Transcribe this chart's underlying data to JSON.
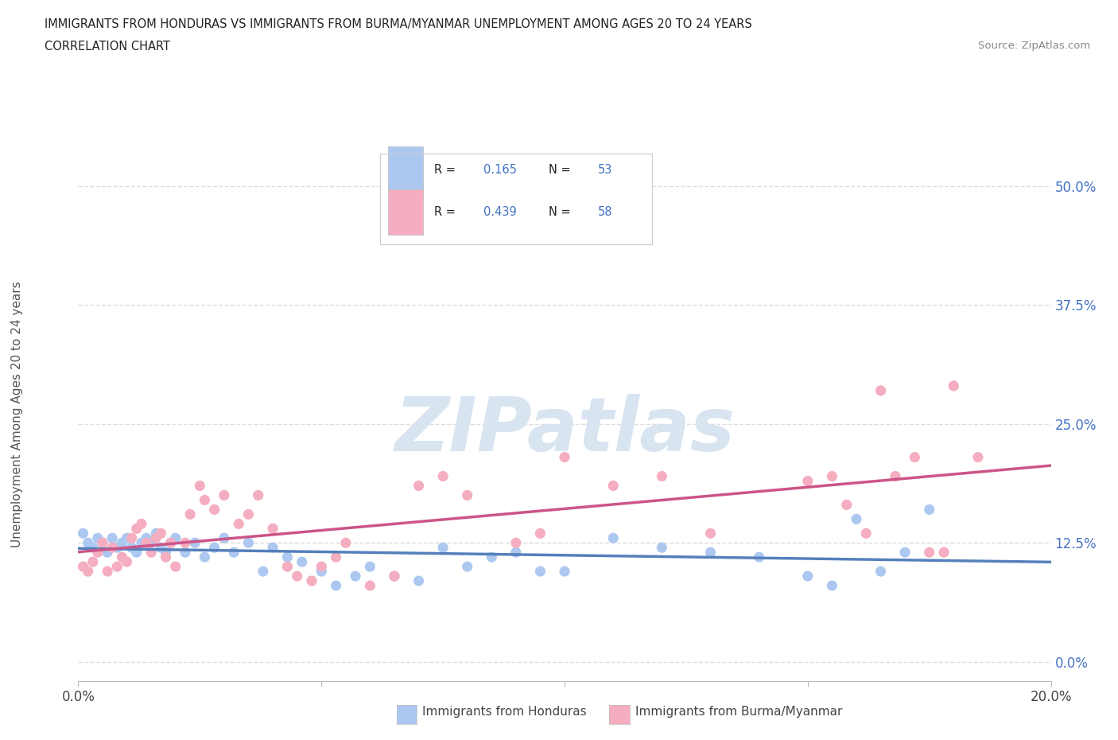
{
  "title_line1": "IMMIGRANTS FROM HONDURAS VS IMMIGRANTS FROM BURMA/MYANMAR UNEMPLOYMENT AMONG AGES 20 TO 24 YEARS",
  "title_line2": "CORRELATION CHART",
  "source_text": "Source: ZipAtlas.com",
  "ylabel": "Unemployment Among Ages 20 to 24 years",
  "xlim": [
    0.0,
    0.2
  ],
  "ylim": [
    -0.02,
    0.54
  ],
  "xticks": [
    0.0,
    0.05,
    0.1,
    0.15,
    0.2
  ],
  "xtick_labels": [
    "0.0%",
    "",
    "",
    "",
    "20.0%"
  ],
  "ytick_labels": [
    "0.0%",
    "12.5%",
    "25.0%",
    "37.5%",
    "50.0%"
  ],
  "yticks": [
    0.0,
    0.125,
    0.25,
    0.375,
    0.5
  ],
  "r_honduras": "0.165",
  "n_honduras": "53",
  "r_burma": "0.439",
  "n_burma": "58",
  "color_honduras": "#adc8f0",
  "color_burma": "#f5adc0",
  "line_color_honduras": "#5580bb",
  "line_color_burma": "#cc5588",
  "watermark_text": "ZIPatlas",
  "watermark_color": "#d8e4f0",
  "background_color": "#ffffff",
  "grid_color": "#dddddd",
  "legend_box_color": "#f0f0f0",
  "text_blue": "#4472c4",
  "text_dark": "#333333",
  "honduras_x": [
    0.001,
    0.002,
    0.003,
    0.004,
    0.005,
    0.006,
    0.007,
    0.008,
    0.009,
    0.01,
    0.011,
    0.012,
    0.013,
    0.014,
    0.015,
    0.016,
    0.017,
    0.018,
    0.019,
    0.02,
    0.022,
    0.024,
    0.026,
    0.028,
    0.03,
    0.032,
    0.035,
    0.038,
    0.04,
    0.043,
    0.046,
    0.05,
    0.053,
    0.057,
    0.06,
    0.065,
    0.07,
    0.075,
    0.08,
    0.085,
    0.09,
    0.095,
    0.1,
    0.11,
    0.12,
    0.13,
    0.14,
    0.15,
    0.155,
    0.16,
    0.165,
    0.17,
    0.175
  ],
  "honduras_y": [
    0.135,
    0.125,
    0.12,
    0.13,
    0.125,
    0.115,
    0.13,
    0.12,
    0.125,
    0.13,
    0.12,
    0.115,
    0.125,
    0.13,
    0.125,
    0.135,
    0.12,
    0.115,
    0.125,
    0.13,
    0.115,
    0.125,
    0.11,
    0.12,
    0.13,
    0.115,
    0.125,
    0.095,
    0.12,
    0.11,
    0.105,
    0.095,
    0.08,
    0.09,
    0.1,
    0.09,
    0.085,
    0.12,
    0.1,
    0.11,
    0.115,
    0.095,
    0.095,
    0.13,
    0.12,
    0.115,
    0.11,
    0.09,
    0.08,
    0.15,
    0.095,
    0.115,
    0.16
  ],
  "burma_x": [
    0.001,
    0.002,
    0.003,
    0.004,
    0.005,
    0.006,
    0.007,
    0.008,
    0.009,
    0.01,
    0.011,
    0.012,
    0.013,
    0.014,
    0.015,
    0.016,
    0.017,
    0.018,
    0.019,
    0.02,
    0.022,
    0.023,
    0.025,
    0.026,
    0.028,
    0.03,
    0.033,
    0.035,
    0.037,
    0.04,
    0.043,
    0.045,
    0.048,
    0.05,
    0.053,
    0.055,
    0.06,
    0.065,
    0.07,
    0.075,
    0.08,
    0.09,
    0.095,
    0.1,
    0.11,
    0.12,
    0.13,
    0.15,
    0.155,
    0.158,
    0.162,
    0.165,
    0.168,
    0.172,
    0.175,
    0.178,
    0.18,
    0.185
  ],
  "burma_y": [
    0.1,
    0.095,
    0.105,
    0.115,
    0.125,
    0.095,
    0.12,
    0.1,
    0.11,
    0.105,
    0.13,
    0.14,
    0.145,
    0.125,
    0.115,
    0.13,
    0.135,
    0.11,
    0.125,
    0.1,
    0.125,
    0.155,
    0.185,
    0.17,
    0.16,
    0.175,
    0.145,
    0.155,
    0.175,
    0.14,
    0.1,
    0.09,
    0.085,
    0.1,
    0.11,
    0.125,
    0.08,
    0.09,
    0.185,
    0.195,
    0.175,
    0.125,
    0.135,
    0.215,
    0.185,
    0.195,
    0.135,
    0.19,
    0.195,
    0.165,
    0.135,
    0.285,
    0.195,
    0.215,
    0.115,
    0.115,
    0.29,
    0.215
  ]
}
